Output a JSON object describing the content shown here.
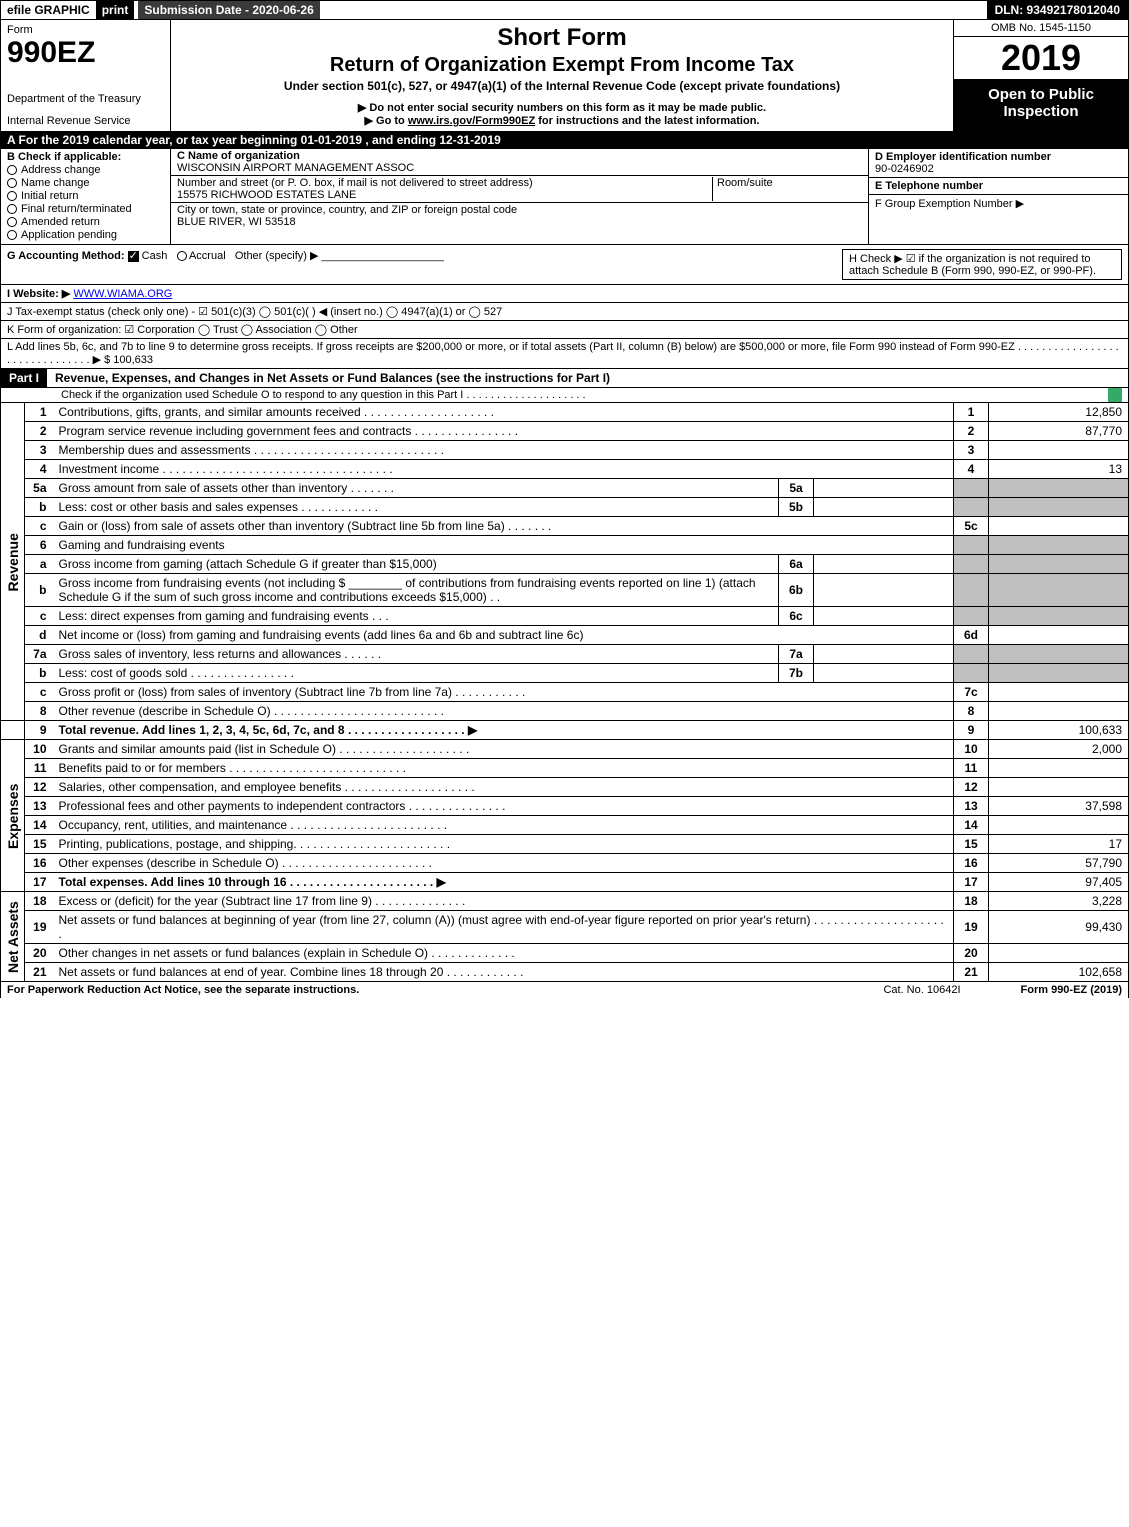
{
  "topbar": {
    "efile_label": "efile GRAPHIC",
    "print_label": "print",
    "submission_label": "Submission Date - 2020-06-26",
    "dln_label": "DLN: 93492178012040"
  },
  "header": {
    "form_word": "Form",
    "form_number": "990EZ",
    "dept1": "Department of the Treasury",
    "dept2": "Internal Revenue Service",
    "title1": "Short Form",
    "title2": "Return of Organization Exempt From Income Tax",
    "subtitle": "Under section 501(c), 527, or 4947(a)(1) of the Internal Revenue Code (except private foundations)",
    "note1": "▶ Do not enter social security numbers on this form as it may be made public.",
    "note2_pre": "▶ Go to ",
    "note2_link": "www.irs.gov/Form990EZ",
    "note2_post": " for instructions and the latest information.",
    "omb": "OMB No. 1545-1150",
    "year": "2019",
    "inspection": "Open to Public Inspection"
  },
  "tax_year_line": "A For the 2019 calendar year, or tax year beginning 01-01-2019 , and ending 12-31-2019",
  "section_b": {
    "header": "B Check if applicable:",
    "items": [
      "Address change",
      "Name change",
      "Initial return",
      "Final return/terminated",
      "Amended return",
      "Application pending"
    ]
  },
  "section_c": {
    "name_label": "C Name of organization",
    "name": "WISCONSIN AIRPORT MANAGEMENT ASSOC",
    "addr_label": "Number and street (or P. O. box, if mail is not delivered to street address)",
    "addr": "15575 RICHWOOD ESTATES LANE",
    "room_label": "Room/suite",
    "city_label": "City or town, state or province, country, and ZIP or foreign postal code",
    "city": "BLUE RIVER, WI  53518"
  },
  "section_d": {
    "ein_label": "D Employer identification number",
    "ein": "90-0246902",
    "phone_label": "E Telephone number",
    "group_label": "F Group Exemption Number  ▶"
  },
  "row_g": {
    "label": "G Accounting Method:",
    "cash": "Cash",
    "accrual": "Accrual",
    "other": "Other (specify) ▶"
  },
  "row_h": {
    "text": "H  Check ▶ ☑ if the organization is not required to attach Schedule B (Form 990, 990-EZ, or 990-PF)."
  },
  "row_i": {
    "label": "I Website: ▶",
    "value": "WWW.WIAMA.ORG"
  },
  "row_j": {
    "text": "J Tax-exempt status (check only one) - ☑ 501(c)(3)  ◯ 501(c)(  ) ◀ (insert no.)  ◯ 4947(a)(1) or  ◯ 527"
  },
  "row_k": {
    "text": "K Form of organization:  ☑ Corporation  ◯ Trust  ◯ Association  ◯ Other"
  },
  "row_l": {
    "text": "L Add lines 5b, 6c, and 7b to line 9 to determine gross receipts. If gross receipts are $200,000 or more, or if total assets (Part II, column (B) below) are $500,000 or more, file Form 990 instead of Form 990-EZ . . . . . . . . . . . . . . . . . . . . . . . . . . . . . . . ▶ $ 100,633"
  },
  "part1": {
    "label": "Part I",
    "title": "Revenue, Expenses, and Changes in Net Assets or Fund Balances (see the instructions for Part I)",
    "sub": "Check if the organization used Schedule O to respond to any question in this Part I . . . . . . . . . . . . . . . . . . . ."
  },
  "side_labels": {
    "revenue": "Revenue",
    "expenses": "Expenses",
    "netassets": "Net Assets"
  },
  "lines": {
    "l1": {
      "n": "1",
      "d": "Contributions, gifts, grants, and similar amounts received . . . . . . . . . . . . . . . . . . . .",
      "box": "1",
      "amt": "12,850"
    },
    "l2": {
      "n": "2",
      "d": "Program service revenue including government fees and contracts . . . . . . . . . . . . . . . .",
      "box": "2",
      "amt": "87,770"
    },
    "l3": {
      "n": "3",
      "d": "Membership dues and assessments . . . . . . . . . . . . . . . . . . . . . . . . . . . . .",
      "box": "3",
      "amt": ""
    },
    "l4": {
      "n": "4",
      "d": "Investment income . . . . . . . . . . . . . . . . . . . . . . . . . . . . . . . . . . .",
      "box": "4",
      "amt": "13"
    },
    "l5a": {
      "n": "5a",
      "d": "Gross amount from sale of assets other than inventory . . . . . . .",
      "sub": "5a"
    },
    "l5b": {
      "n": "b",
      "d": "Less: cost or other basis and sales expenses . . . . . . . . . . . .",
      "sub": "5b"
    },
    "l5c": {
      "n": "c",
      "d": "Gain or (loss) from sale of assets other than inventory (Subtract line 5b from line 5a) . . . . . . .",
      "box": "5c",
      "amt": ""
    },
    "l6": {
      "n": "6",
      "d": "Gaming and fundraising events"
    },
    "l6a": {
      "n": "a",
      "d": "Gross income from gaming (attach Schedule G if greater than $15,000)",
      "sub": "6a"
    },
    "l6b": {
      "n": "b",
      "d1": "Gross income from fundraising events (not including $",
      "d2": " of contributions from fundraising events reported on line 1) (attach Schedule G if the sum of such gross income and contributions exceeds $15,000)   . .",
      "sub": "6b"
    },
    "l6c": {
      "n": "c",
      "d": "Less: direct expenses from gaming and fundraising events    . . .",
      "sub": "6c"
    },
    "l6d": {
      "n": "d",
      "d": "Net income or (loss) from gaming and fundraising events (add lines 6a and 6b and subtract line 6c)",
      "box": "6d",
      "amt": ""
    },
    "l7a": {
      "n": "7a",
      "d": "Gross sales of inventory, less returns and allowances . . . . . .",
      "sub": "7a"
    },
    "l7b": {
      "n": "b",
      "d": "Less: cost of goods sold   . . . . . . . . . . . . . . . .",
      "sub": "7b"
    },
    "l7c": {
      "n": "c",
      "d": "Gross profit or (loss) from sales of inventory (Subtract line 7b from line 7a) . . . . . . . . . . .",
      "box": "7c",
      "amt": ""
    },
    "l8": {
      "n": "8",
      "d": "Other revenue (describe in Schedule O) . . . . . . . . . . . . . . . . . . . . . . . . . .",
      "box": "8",
      "amt": ""
    },
    "l9": {
      "n": "9",
      "d": "Total revenue. Add lines 1, 2, 3, 4, 5c, 6d, 7c, and 8  . . . . . . . . . . . . . . . . . .  ▶",
      "box": "9",
      "amt": "100,633"
    },
    "l10": {
      "n": "10",
      "d": "Grants and similar amounts paid (list in Schedule O) . . . . . . . . . . . . . . . . . . . .",
      "box": "10",
      "amt": "2,000"
    },
    "l11": {
      "n": "11",
      "d": "Benefits paid to or for members   . . . . . . . . . . . . . . . . . . . . . . . . . . .",
      "box": "11",
      "amt": ""
    },
    "l12": {
      "n": "12",
      "d": "Salaries, other compensation, and employee benefits . . . . . . . . . . . . . . . . . . . .",
      "box": "12",
      "amt": ""
    },
    "l13": {
      "n": "13",
      "d": "Professional fees and other payments to independent contractors . . . . . . . . . . . . . . .",
      "box": "13",
      "amt": "37,598"
    },
    "l14": {
      "n": "14",
      "d": "Occupancy, rent, utilities, and maintenance . . . . . . . . . . . . . . . . . . . . . . . .",
      "box": "14",
      "amt": ""
    },
    "l15": {
      "n": "15",
      "d": "Printing, publications, postage, and shipping. . . . . . . . . . . . . . . . . . . . . . . .",
      "box": "15",
      "amt": "17"
    },
    "l16": {
      "n": "16",
      "d": "Other expenses (describe in Schedule O)   . . . . . . . . . . . . . . . . . . . . . . .",
      "box": "16",
      "amt": "57,790"
    },
    "l17": {
      "n": "17",
      "d": "Total expenses. Add lines 10 through 16   . . . . . . . . . . . . . . . . . . . . . .  ▶",
      "box": "17",
      "amt": "97,405"
    },
    "l18": {
      "n": "18",
      "d": "Excess or (deficit) for the year (Subtract line 17 from line 9)    . . . . . . . . . . . . . .",
      "box": "18",
      "amt": "3,228"
    },
    "l19": {
      "n": "19",
      "d": "Net assets or fund balances at beginning of year (from line 27, column (A)) (must agree with end-of-year figure reported on prior year's return) . . . . . . . . . . . . . . . . . . . . .",
      "box": "19",
      "amt": "99,430"
    },
    "l20": {
      "n": "20",
      "d": "Other changes in net assets or fund balances (explain in Schedule O) . . . . . . . . . . . . .",
      "box": "20",
      "amt": ""
    },
    "l21": {
      "n": "21",
      "d": "Net assets or fund balances at end of year. Combine lines 18 through 20 . . . . . . . . . . . .",
      "box": "21",
      "amt": "102,658"
    }
  },
  "footer": {
    "notice": "For Paperwork Reduction Act Notice, see the separate instructions.",
    "cat": "Cat. No. 10642I",
    "formref": "Form 990-EZ (2019)"
  },
  "colors": {
    "black": "#000000",
    "white": "#ffffff",
    "grey": "#c0c0c0",
    "check_green": "#339966"
  }
}
